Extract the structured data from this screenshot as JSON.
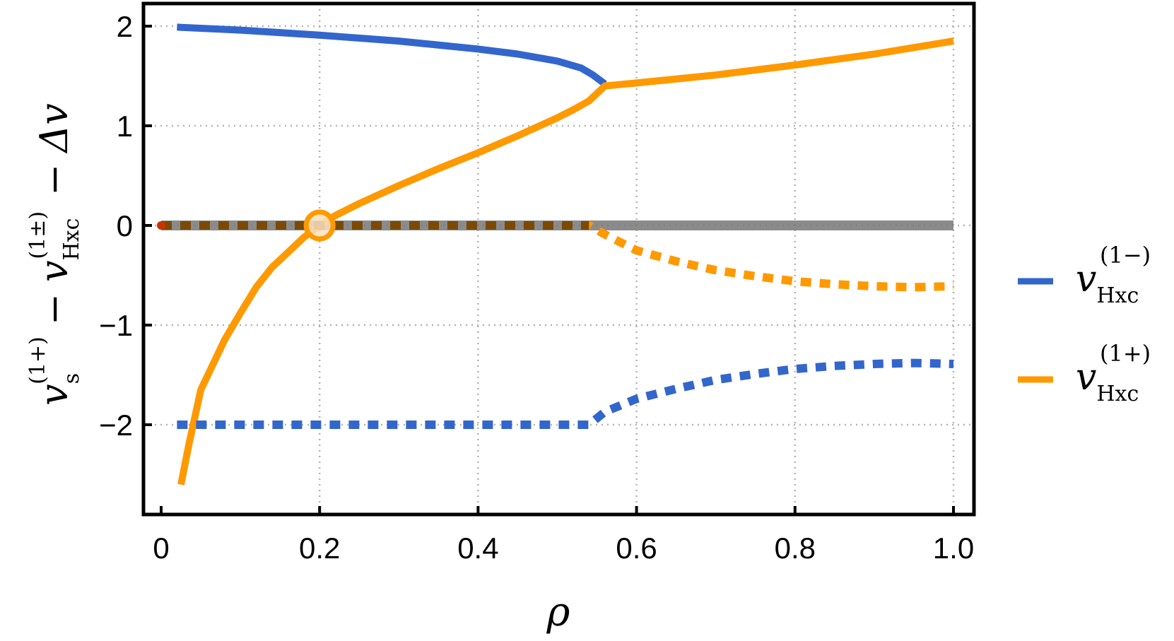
{
  "chart_data": {
    "type": "line",
    "xlabel": "ρ",
    "ylabel": {
      "base": "v",
      "sub1": "s",
      "sup1": "(1+)",
      "minus1": "−",
      "base2": "v",
      "sub2": "Hxc",
      "sup2": "(1±)",
      "minus2": "−",
      "tail": "Δv"
    },
    "xlim": [
      0,
      1.0
    ],
    "ylim": [
      -2.85,
      2.25
    ],
    "x_ticks": [
      0,
      0.2,
      0.4,
      0.6,
      0.8,
      1.0
    ],
    "x_tick_labels": [
      "0",
      "0.2",
      "0.4",
      "0.6",
      "0.8",
      "1.0"
    ],
    "y_ticks": [
      -2,
      -1,
      0,
      1,
      2
    ],
    "y_tick_labels": [
      "−2",
      "−1",
      "0",
      "1",
      "2"
    ],
    "grid": true,
    "legend_position": "right",
    "series": [
      {
        "name": "v_Hxc^(1−)",
        "legend": {
          "base": "v",
          "sub": "Hxc",
          "sup": "(1−)"
        },
        "color": "#3366cc",
        "style": "solid",
        "x": [
          0.02,
          0.1,
          0.2,
          0.3,
          0.4,
          0.45,
          0.5,
          0.53,
          0.545,
          0.56
        ],
        "y": [
          1.99,
          1.96,
          1.91,
          1.85,
          1.77,
          1.72,
          1.65,
          1.58,
          1.51,
          1.42
        ]
      },
      {
        "name": "v_Hxc^(1+)",
        "legend": {
          "base": "v",
          "sub": "Hxc",
          "sup": "(1+)"
        },
        "color": "#ff9900",
        "style": "solid",
        "x": [
          0.025,
          0.035,
          0.05,
          0.065,
          0.08,
          0.1,
          0.12,
          0.14,
          0.16,
          0.18,
          0.2,
          0.22,
          0.25,
          0.3,
          0.35,
          0.4,
          0.45,
          0.5,
          0.52,
          0.54,
          0.56,
          0.6,
          0.7,
          0.8,
          0.9,
          1.0
        ],
        "y": [
          -2.6,
          -2.2,
          -1.65,
          -1.4,
          -1.15,
          -0.88,
          -0.62,
          -0.42,
          -0.27,
          -0.12,
          0.0,
          0.1,
          0.22,
          0.4,
          0.57,
          0.73,
          0.9,
          1.08,
          1.16,
          1.25,
          1.4,
          1.43,
          1.51,
          1.61,
          1.72,
          1.85
        ]
      },
      {
        "name": "Δv zero line",
        "color": "#777777",
        "style": "solid",
        "x": [
          0.0,
          1.0
        ],
        "y": [
          0.0,
          0.0
        ]
      },
      {
        "name": "v_s − v_Hxc^(1+) − Δv",
        "color": "#ff9900",
        "style": "dotted",
        "x": [
          0.0,
          0.54,
          0.56,
          0.6,
          0.65,
          0.7,
          0.75,
          0.8,
          0.85,
          0.9,
          0.95,
          1.0
        ],
        "y": [
          0.0,
          0.0,
          -0.09,
          -0.25,
          -0.36,
          -0.45,
          -0.51,
          -0.56,
          -0.59,
          -0.61,
          -0.62,
          -0.61
        ]
      },
      {
        "name": "v_s − v_Hxc^(1−) − Δv",
        "color": "#3366cc",
        "style": "dotted",
        "x": [
          0.02,
          0.54,
          0.56,
          0.6,
          0.65,
          0.7,
          0.75,
          0.8,
          0.85,
          0.9,
          0.95,
          1.0
        ],
        "y": [
          -2.0,
          -2.0,
          -1.87,
          -1.74,
          -1.64,
          -1.55,
          -1.49,
          -1.44,
          -1.41,
          -1.39,
          -1.38,
          -1.39
        ]
      }
    ],
    "markers": [
      {
        "name": "crossing-circle",
        "x": 0.2,
        "y": 0.0,
        "color": "#ff9900"
      },
      {
        "name": "origin-dot",
        "x": 0.0,
        "y": 0.0,
        "color": "#cc3300"
      }
    ]
  }
}
